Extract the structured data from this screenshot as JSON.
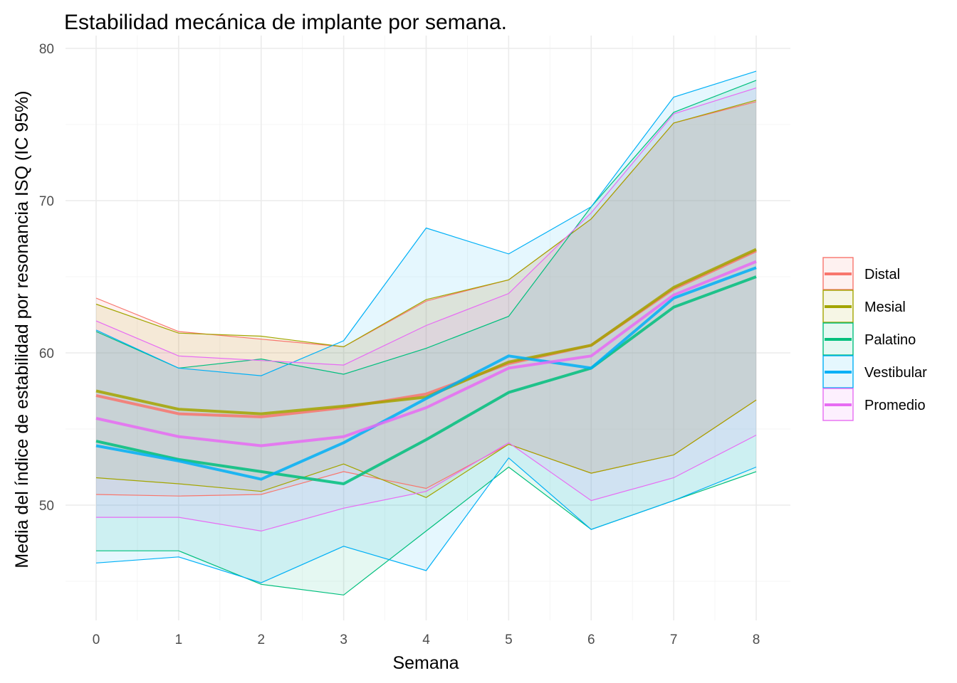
{
  "chart_data": {
    "type": "line",
    "title": "Estabilidad mecánica de implante por semana.",
    "xlabel": "Semana",
    "ylabel": "Media del índice de estabilidad por resonancia ISQ (IC 95%)",
    "x": [
      0,
      1,
      2,
      3,
      4,
      5,
      6,
      7,
      8
    ],
    "xlim": [
      0,
      8
    ],
    "ylim": [
      42.5,
      80
    ],
    "y_ticks": [
      50,
      60,
      70,
      80
    ],
    "grid": true,
    "legend_position": "right",
    "series": [
      {
        "name": "Distal",
        "color": "#F8766D",
        "mean": [
          57.2,
          56.0,
          55.8,
          56.4,
          57.3,
          59.3,
          60.5,
          64.2,
          66.7
        ],
        "lower": [
          50.7,
          50.6,
          50.7,
          52.2,
          51.1,
          54.0,
          52.1,
          53.3,
          56.9
        ],
        "upper": [
          63.6,
          61.4,
          60.9,
          60.4,
          63.4,
          64.8,
          68.8,
          75.1,
          76.5
        ]
      },
      {
        "name": "Mesial",
        "color": "#A3A500",
        "mean": [
          57.5,
          56.3,
          56.0,
          56.5,
          57.1,
          59.4,
          60.5,
          64.3,
          66.8
        ],
        "lower": [
          51.8,
          51.4,
          50.9,
          52.7,
          50.5,
          54.0,
          52.1,
          53.3,
          56.9
        ],
        "upper": [
          63.2,
          61.3,
          61.1,
          60.4,
          63.5,
          64.8,
          68.8,
          75.1,
          76.6
        ]
      },
      {
        "name": "Palatino",
        "color": "#00BF7D",
        "mean": [
          54.2,
          53.0,
          52.2,
          51.4,
          54.3,
          57.4,
          59.0,
          63.0,
          65.0
        ],
        "lower": [
          47.0,
          47.0,
          44.8,
          44.1,
          48.3,
          52.5,
          48.4,
          50.3,
          52.2
        ],
        "upper": [
          61.4,
          59.0,
          59.6,
          58.6,
          60.3,
          62.4,
          69.6,
          75.8,
          77.9
        ]
      },
      {
        "name": "Vestibular",
        "color": "#00B0F6",
        "mean": [
          53.9,
          52.9,
          51.7,
          54.1,
          57.0,
          59.8,
          59.0,
          63.6,
          65.6
        ],
        "lower": [
          46.2,
          46.6,
          44.9,
          47.3,
          45.7,
          53.1,
          48.4,
          50.3,
          52.5
        ],
        "upper": [
          61.5,
          59.0,
          58.5,
          60.8,
          68.2,
          66.5,
          69.6,
          76.8,
          78.5
        ]
      },
      {
        "name": "Promedio",
        "color": "#E76BF3",
        "mean": [
          55.7,
          54.5,
          53.9,
          54.5,
          56.4,
          59.0,
          59.8,
          63.8,
          66.0
        ],
        "lower": [
          49.2,
          49.2,
          48.3,
          49.8,
          50.9,
          54.1,
          50.3,
          51.8,
          54.6
        ],
        "upper": [
          62.1,
          59.8,
          59.5,
          59.2,
          61.8,
          63.9,
          69.2,
          75.7,
          77.4
        ]
      }
    ]
  }
}
